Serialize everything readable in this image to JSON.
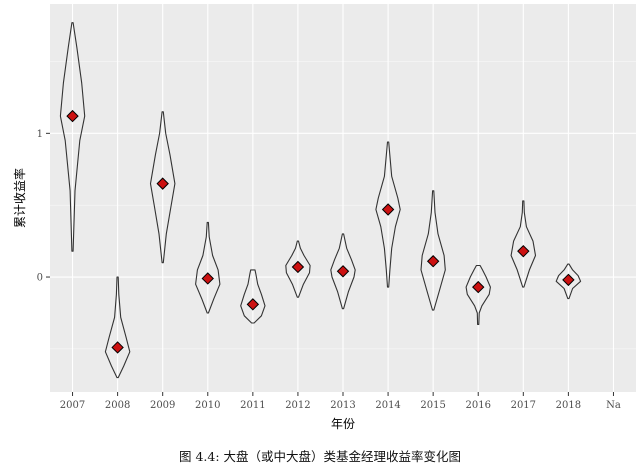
{
  "chart_data": {
    "type": "violin",
    "xlabel": "年份",
    "ylabel": "累计收益率",
    "caption": "图 4.4: 大盘（或中大盘）类基金经理收益率变化图",
    "categories": [
      "2007",
      "2008",
      "2009",
      "2010",
      "2011",
      "2012",
      "2013",
      "2014",
      "2015",
      "2016",
      "2017",
      "2018",
      "Na"
    ],
    "yticks": [
      0,
      1
    ],
    "ylim": [
      -0.8,
      1.9
    ],
    "grid": true,
    "colors": {
      "panel": "#ebebeb",
      "grid_major": "#ffffff",
      "outline": "#333333",
      "marker": "#cc1111"
    },
    "series": [
      {
        "category": "2007",
        "mean": 1.12,
        "min": 0.18,
        "max": 1.77,
        "profile": [
          [
            0.18,
            0.0
          ],
          [
            0.6,
            0.2
          ],
          [
            0.95,
            0.6
          ],
          [
            1.12,
            1.0
          ],
          [
            1.35,
            0.75
          ],
          [
            1.6,
            0.35
          ],
          [
            1.77,
            0.05
          ]
        ]
      },
      {
        "category": "2008",
        "mean": -0.49,
        "min": -0.7,
        "max": 0.0,
        "profile": [
          [
            -0.7,
            0.05
          ],
          [
            -0.62,
            0.5
          ],
          [
            -0.52,
            1.0
          ],
          [
            -0.42,
            0.7
          ],
          [
            -0.28,
            0.25
          ],
          [
            -0.12,
            0.1
          ],
          [
            0.0,
            0.02
          ]
        ]
      },
      {
        "category": "2009",
        "mean": 0.65,
        "min": 0.1,
        "max": 1.15,
        "profile": [
          [
            0.1,
            0.05
          ],
          [
            0.3,
            0.3
          ],
          [
            0.5,
            0.7
          ],
          [
            0.65,
            1.0
          ],
          [
            0.85,
            0.6
          ],
          [
            1.0,
            0.25
          ],
          [
            1.15,
            0.03
          ]
        ]
      },
      {
        "category": "2010",
        "mean": -0.01,
        "min": -0.25,
        "max": 0.38,
        "profile": [
          [
            -0.25,
            0.05
          ],
          [
            -0.15,
            0.5
          ],
          [
            -0.05,
            1.0
          ],
          [
            0.05,
            0.85
          ],
          [
            0.15,
            0.4
          ],
          [
            0.28,
            0.12
          ],
          [
            0.38,
            0.02
          ]
        ]
      },
      {
        "category": "2011",
        "mean": -0.19,
        "min": -0.32,
        "max": 0.05,
        "profile": [
          [
            -0.32,
            0.1
          ],
          [
            -0.27,
            0.7
          ],
          [
            -0.2,
            1.0
          ],
          [
            -0.12,
            0.7
          ],
          [
            -0.05,
            0.4
          ],
          [
            0.02,
            0.25
          ],
          [
            0.05,
            0.18
          ]
        ]
      },
      {
        "category": "2012",
        "mean": 0.07,
        "min": -0.14,
        "max": 0.25,
        "profile": [
          [
            -0.14,
            0.05
          ],
          [
            -0.05,
            0.45
          ],
          [
            0.03,
            0.95
          ],
          [
            0.08,
            1.0
          ],
          [
            0.15,
            0.5
          ],
          [
            0.2,
            0.2
          ],
          [
            0.25,
            0.05
          ]
        ]
      },
      {
        "category": "2013",
        "mean": 0.04,
        "min": -0.22,
        "max": 0.3,
        "profile": [
          [
            -0.22,
            0.05
          ],
          [
            -0.1,
            0.45
          ],
          [
            0.0,
            0.9
          ],
          [
            0.05,
            1.0
          ],
          [
            0.12,
            0.7
          ],
          [
            0.2,
            0.3
          ],
          [
            0.3,
            0.03
          ]
        ]
      },
      {
        "category": "2014",
        "mean": 0.47,
        "min": -0.07,
        "max": 0.94,
        "profile": [
          [
            -0.07,
            0.05
          ],
          [
            0.05,
            0.15
          ],
          [
            0.2,
            0.3
          ],
          [
            0.35,
            0.6
          ],
          [
            0.47,
            1.0
          ],
          [
            0.55,
            0.8
          ],
          [
            0.7,
            0.3
          ],
          [
            0.94,
            0.02
          ]
        ]
      },
      {
        "category": "2015",
        "mean": 0.11,
        "min": -0.23,
        "max": 0.6,
        "profile": [
          [
            -0.23,
            0.05
          ],
          [
            -0.1,
            0.5
          ],
          [
            0.05,
            1.0
          ],
          [
            0.15,
            0.9
          ],
          [
            0.3,
            0.4
          ],
          [
            0.45,
            0.15
          ],
          [
            0.6,
            0.02
          ]
        ]
      },
      {
        "category": "2016",
        "mean": -0.07,
        "min": -0.33,
        "max": 0.08,
        "profile": [
          [
            -0.33,
            0.03
          ],
          [
            -0.25,
            0.08
          ],
          [
            -0.2,
            0.3
          ],
          [
            -0.12,
            0.9
          ],
          [
            -0.07,
            1.0
          ],
          [
            0.0,
            0.65
          ],
          [
            0.05,
            0.35
          ],
          [
            0.08,
            0.15
          ]
        ]
      },
      {
        "category": "2017",
        "mean": 0.18,
        "min": -0.07,
        "max": 0.53,
        "profile": [
          [
            -0.07,
            0.05
          ],
          [
            0.05,
            0.5
          ],
          [
            0.15,
            1.0
          ],
          [
            0.25,
            0.8
          ],
          [
            0.35,
            0.25
          ],
          [
            0.45,
            0.08
          ],
          [
            0.53,
            0.03
          ]
        ]
      },
      {
        "category": "2018",
        "mean": -0.02,
        "min": -0.15,
        "max": 0.09,
        "profile": [
          [
            -0.15,
            0.05
          ],
          [
            -0.08,
            0.35
          ],
          [
            -0.03,
            1.0
          ],
          [
            0.01,
            0.8
          ],
          [
            0.05,
            0.35
          ],
          [
            0.09,
            0.05
          ]
        ]
      }
    ]
  }
}
